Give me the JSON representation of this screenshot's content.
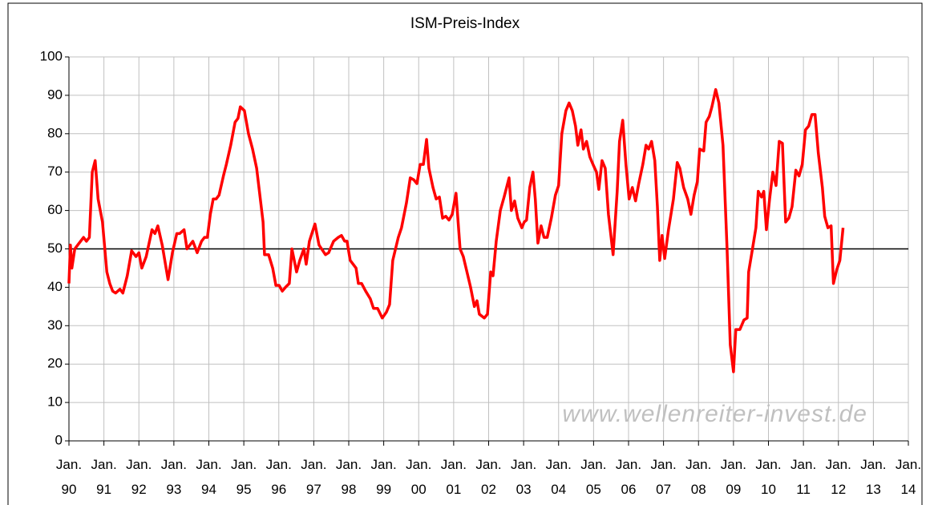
{
  "chart_data": {
    "type": "line",
    "title": "ISM-Preis-Index",
    "watermark": "www.wellenreiter-invest.de",
    "x": [
      0,
      0.5,
      1,
      2,
      3,
      5,
      6,
      7,
      8,
      9,
      10,
      11.5,
      13,
      14,
      15,
      16,
      17.5,
      18.5,
      20,
      21.5,
      23,
      24,
      25,
      26.5,
      28.5,
      29.5,
      30.5,
      32,
      34,
      35.5,
      37,
      38,
      39.5,
      40.5,
      42.5,
      44,
      45.5,
      46.5,
      47.5,
      48.5,
      49.5,
      50.5,
      51.5,
      53,
      54,
      55.5,
      57,
      58,
      58.8,
      60.2,
      61.6,
      63,
      64.4,
      65.5,
      66.6,
      67.1,
      68.5,
      69.9,
      71,
      72.1,
      73.2,
      74.3,
      75.6,
      76.5,
      78.1,
      79.2,
      80.6,
      81.4,
      82.5,
      84.4,
      85.8,
      88,
      89.1,
      90.8,
      92.4,
      93.5,
      94.6,
      95.4,
      96.5,
      98.5,
      99.3,
      100.4,
      101.8,
      103.4,
      104.5,
      105.9,
      107.5,
      108.9,
      110,
      111.1,
      113,
      114.1,
      115.8,
      117.1,
      118.3,
      119.4,
      120.5,
      121.6,
      122.7,
      123.5,
      124.9,
      126,
      127.1,
      128.2,
      129.3,
      130.4,
      131.5,
      132.8,
      134.2,
      135.3,
      136.4,
      137.8,
      139.1,
      140,
      140.8,
      142.5,
      143.6,
      144.7,
      145.5,
      146.6,
      148,
      149.3,
      151,
      151.8,
      152.9,
      154,
      155.4,
      156.2,
      157,
      158.1,
      159.2,
      160,
      160.9,
      162,
      163,
      164.1,
      165.5,
      166.9,
      168,
      169.1,
      170.5,
      171.6,
      172.7,
      173.8,
      174.6,
      175.7,
      176.5,
      177.6,
      178.7,
      179.8,
      181,
      181.8,
      182.9,
      184,
      185.1,
      186.7,
      188.1,
      188.9,
      190,
      191.1,
      192.2,
      193.3,
      194.4,
      195.5,
      196.9,
      198,
      198.9,
      199.9,
      201,
      201.9,
      202.7,
      203.5,
      204.4,
      205.7,
      207.4,
      208.7,
      209.6,
      210.9,
      212.3,
      213.4,
      214.5,
      215.6,
      216.4,
      217.8,
      218.6,
      219.7,
      220.6,
      221.9,
      223,
      224.4,
      225.8,
      226.9,
      228,
      228.8,
      230.2,
      231.6,
      232.7,
      233.2,
      234.3,
      235.7,
      236.5,
      237.6,
      238.4,
      239.3,
      240.4,
      241.5,
      242.6,
      243.7,
      244.8,
      245.9,
      247,
      248.1,
      249.4,
      250.5,
      251.6,
      252.7,
      253.8,
      254.9,
      256,
      257.1,
      258.5,
      259.3,
      260.4,
      261.5,
      262.3,
      263.4,
      264.5,
      265.6
    ],
    "series": [
      {
        "name": "ISM-Preis-Index",
        "color": "#ff0000",
        "values": [
          41,
          51,
          45,
          50,
          51,
          53,
          52,
          53,
          70,
          73,
          63,
          57,
          44,
          41,
          39,
          38.5,
          39.5,
          38.5,
          43,
          49.5,
          48,
          49,
          45,
          48,
          55,
          54,
          56,
          51,
          42,
          49,
          54,
          54,
          55,
          50,
          52,
          49,
          52,
          53,
          53,
          59,
          63,
          63,
          64,
          69,
          72,
          77,
          83,
          84,
          87,
          86,
          80,
          76,
          71,
          64,
          57,
          48.5,
          48.5,
          45,
          40.5,
          40.5,
          39,
          40,
          41,
          50,
          44,
          47,
          50,
          46,
          52,
          56.5,
          51,
          48.5,
          49,
          52,
          53,
          53.5,
          52,
          52,
          47,
          45,
          41,
          41,
          39,
          37,
          34.5,
          34.5,
          32,
          33.5,
          35.5,
          47,
          53,
          55.5,
          62,
          68.5,
          68,
          67,
          72,
          72,
          78.5,
          71,
          66,
          63,
          63.5,
          58,
          58.5,
          57.5,
          59,
          64.5,
          50,
          48,
          44.5,
          40,
          35,
          36.5,
          33,
          32,
          33,
          44,
          43,
          52,
          60,
          63.5,
          68.5,
          60,
          62.5,
          58,
          55.5,
          57,
          57.5,
          66,
          70,
          63,
          51.5,
          56,
          53,
          53,
          58,
          64,
          66.5,
          80,
          86,
          88,
          86,
          82,
          77,
          81,
          76,
          78,
          74,
          72,
          70,
          65.5,
          73,
          71,
          59,
          48.5,
          65,
          78,
          83.5,
          72,
          63,
          66,
          62.5,
          67,
          72,
          77,
          76,
          78,
          73,
          61,
          47,
          53.5,
          47.5,
          55,
          63,
          72.5,
          71,
          66,
          63,
          59,
          64,
          67.5,
          76,
          75.5,
          83,
          84.5,
          87,
          91.5,
          88,
          77,
          50,
          25,
          18,
          29,
          29,
          31.5,
          32,
          44,
          49,
          55.5,
          65,
          63.5,
          65,
          55,
          63,
          70,
          66.5,
          78,
          77.5,
          57,
          58,
          61,
          70.5,
          69,
          72,
          81,
          82,
          85,
          85,
          75,
          66,
          58.5,
          55.5,
          56,
          41,
          44.5,
          47,
          55.5
        ]
      }
    ],
    "xlim": [
      0,
      288
    ],
    "xticks": [
      {
        "value": 0,
        "label": "Jan. 90"
      },
      {
        "value": 12,
        "label": "Jan. 91"
      },
      {
        "value": 24,
        "label": "Jan. 92"
      },
      {
        "value": 36,
        "label": "Jan. 93"
      },
      {
        "value": 48,
        "label": "Jan. 94"
      },
      {
        "value": 60,
        "label": "Jan. 95"
      },
      {
        "value": 72,
        "label": "Jan. 96"
      },
      {
        "value": 84,
        "label": "Jan. 97"
      },
      {
        "value": 96,
        "label": "Jan. 98"
      },
      {
        "value": 108,
        "label": "Jan. 99"
      },
      {
        "value": 120,
        "label": "Jan. 00"
      },
      {
        "value": 132,
        "label": "Jan. 01"
      },
      {
        "value": 144,
        "label": "Jan. 02"
      },
      {
        "value": 156,
        "label": "Jan. 03"
      },
      {
        "value": 168,
        "label": "Jan. 04"
      },
      {
        "value": 180,
        "label": "Jan. 05"
      },
      {
        "value": 192,
        "label": "Jan. 06"
      },
      {
        "value": 204,
        "label": "Jan. 07"
      },
      {
        "value": 216,
        "label": "Jan. 08"
      },
      {
        "value": 228,
        "label": "Jan. 09"
      },
      {
        "value": 240,
        "label": "Jan. 10"
      },
      {
        "value": 252,
        "label": "Jan. 11"
      },
      {
        "value": 264,
        "label": "Jan. 12"
      },
      {
        "value": 276,
        "label": "Jan. 13"
      },
      {
        "value": 288,
        "label": "Jan. 14"
      }
    ],
    "ylim": [
      0,
      100
    ],
    "yticks": [
      0,
      10,
      20,
      30,
      40,
      50,
      60,
      70,
      80,
      90,
      100
    ],
    "hline": 50,
    "grid": true
  }
}
